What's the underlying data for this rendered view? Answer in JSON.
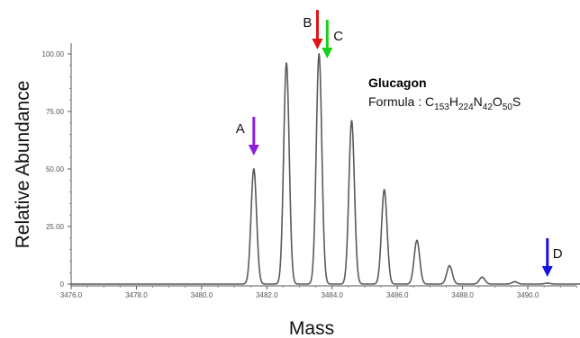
{
  "chart_data": {
    "type": "line",
    "title": "",
    "xlabel": "Mass",
    "ylabel": "Relative Abundance",
    "xlim": [
      3476.0,
      3491.6
    ],
    "ylim": [
      0,
      100
    ],
    "x_ticks": [
      3476.0,
      3478.0,
      3480.0,
      3482.0,
      3484.0,
      3486.0,
      3488.0,
      3490.0
    ],
    "x_tick_labels": [
      "3476.0",
      "3478.0",
      "3480.0",
      "3482.0",
      "3484.0",
      "3486.0",
      "3488.0",
      "3490.0"
    ],
    "y_ticks": [
      0,
      25,
      50,
      75,
      100
    ],
    "y_tick_labels": [
      "0",
      "25.00",
      "50.00",
      "75.00",
      "100.00"
    ],
    "grid": false,
    "peaks": [
      {
        "mass": 3481.6,
        "abundance": 50
      },
      {
        "mass": 3482.6,
        "abundance": 96
      },
      {
        "mass": 3483.6,
        "abundance": 100
      },
      {
        "mass": 3484.6,
        "abundance": 71
      },
      {
        "mass": 3485.6,
        "abundance": 41
      },
      {
        "mass": 3486.6,
        "abundance": 19
      },
      {
        "mass": 3487.6,
        "abundance": 8
      },
      {
        "mass": 3488.6,
        "abundance": 3
      },
      {
        "mass": 3489.6,
        "abundance": 1
      },
      {
        "mass": 3490.6,
        "abundance": 0.4
      }
    ],
    "annotations": [
      {
        "label": "A",
        "mass": 3481.6,
        "color": "#8b1fe0"
      },
      {
        "label": "B",
        "mass": 3483.55,
        "color": "#e01414"
      },
      {
        "label": "C",
        "mass": 3483.85,
        "color": "#19d019"
      },
      {
        "label": "D",
        "mass": 3490.6,
        "color": "#1414e0"
      }
    ],
    "compound": {
      "name": "Glucagon",
      "formula_prefix": "Formula : ",
      "formula_parts": [
        {
          "text": "C",
          "sub": false
        },
        {
          "text": "153",
          "sub": true
        },
        {
          "text": "H",
          "sub": false
        },
        {
          "text": "224",
          "sub": true
        },
        {
          "text": "N",
          "sub": false
        },
        {
          "text": "42",
          "sub": true
        },
        {
          "text": "O",
          "sub": false
        },
        {
          "text": "50",
          "sub": true
        },
        {
          "text": "S",
          "sub": false
        }
      ]
    },
    "line_color": "#5a5a5a"
  }
}
